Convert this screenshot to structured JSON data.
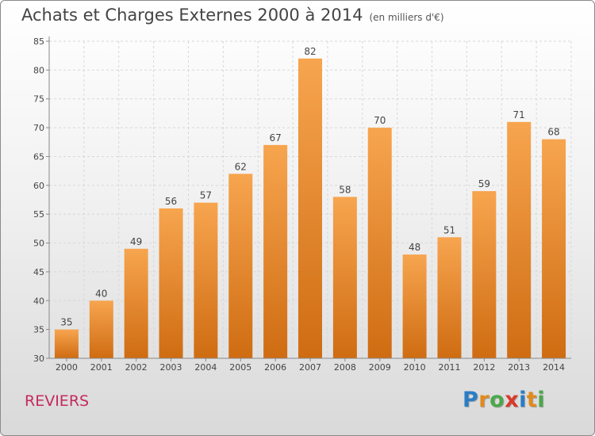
{
  "header": {
    "title": "Achats et Charges Externes 2000 à 2014",
    "unit": "(en milliers d'€)"
  },
  "footer": {
    "commune": "REVIERS",
    "logo_letters": [
      "P",
      "r",
      "o",
      "x",
      "i",
      "t",
      "i"
    ],
    "logo_colors": [
      "#2a7dc4",
      "#e08a1e",
      "#4aa84a",
      "#d93a2a",
      "#2a7dc4",
      "#e08a1e",
      "#4aa84a"
    ]
  },
  "colors": {
    "bar_top": "#f7a54f",
    "bar_bottom": "#cf6c12",
    "axis": "#888888",
    "grid": "#d8d8d8",
    "commune": "#c42a5f"
  },
  "chart_data": {
    "type": "bar",
    "title": "Achats et Charges Externes 2000 à 2014",
    "subtitle": "(en milliers d'€)",
    "categories": [
      "2000",
      "2001",
      "2002",
      "2003",
      "2004",
      "2005",
      "2006",
      "2007",
      "2008",
      "2009",
      "2010",
      "2011",
      "2012",
      "2013",
      "2014"
    ],
    "values": [
      35,
      40,
      49,
      56,
      57,
      62,
      67,
      82,
      58,
      70,
      48,
      51,
      59,
      71,
      68
    ],
    "ylim": [
      30,
      85
    ],
    "yticks": [
      30,
      35,
      40,
      45,
      50,
      55,
      60,
      65,
      70,
      75,
      80,
      85
    ],
    "grid": true,
    "data_labels": true
  }
}
